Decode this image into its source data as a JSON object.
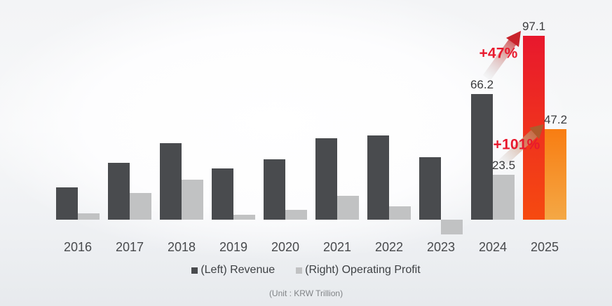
{
  "chart_data": {
    "type": "bar",
    "title": "",
    "categories": [
      "2016",
      "2017",
      "2018",
      "2019",
      "2020",
      "2021",
      "2022",
      "2023",
      "2024",
      "2025"
    ],
    "series": [
      {
        "name": "(Left) Revenue",
        "axis": "left",
        "values": [
          17.2,
          30.1,
          40.4,
          26.9,
          31.9,
          43.0,
          44.6,
          32.8,
          66.2,
          97.1
        ],
        "value_labels": [
          null,
          null,
          null,
          null,
          null,
          null,
          null,
          null,
          "66.2",
          "97.1"
        ]
      },
      {
        "name": "(Right) Operating Profit",
        "axis": "right",
        "values": [
          3.3,
          13.7,
          20.8,
          2.7,
          5.0,
          12.4,
          6.8,
          -7.7,
          23.5,
          47.2
        ],
        "value_labels": [
          null,
          null,
          null,
          null,
          null,
          null,
          null,
          null,
          "23.5",
          "47.2"
        ]
      }
    ],
    "highlight_category": "2025",
    "annotations": [
      {
        "text": "+47%",
        "refers_to": "Revenue growth 2024 to 2025"
      },
      {
        "text": "+101%",
        "refers_to": "Operating Profit growth 2024 to 2025"
      }
    ],
    "legend": [
      "(Left) Revenue",
      "(Right) Operating Profit"
    ],
    "legend_position": "bottom",
    "unit_note": "(Unit : KRW Trillion)",
    "grid": false,
    "value_axis_visible": false
  },
  "colors": {
    "revenue_bar": "#494B4E",
    "operating_profit_bar": "#C1C2C3",
    "highlight_revenue_top": "#E8182D",
    "highlight_revenue_bottom": "#F64A10",
    "highlight_profit_top": "#F87D12",
    "highlight_profit_bottom": "#F4A845",
    "growth_text": "#E8192D"
  }
}
